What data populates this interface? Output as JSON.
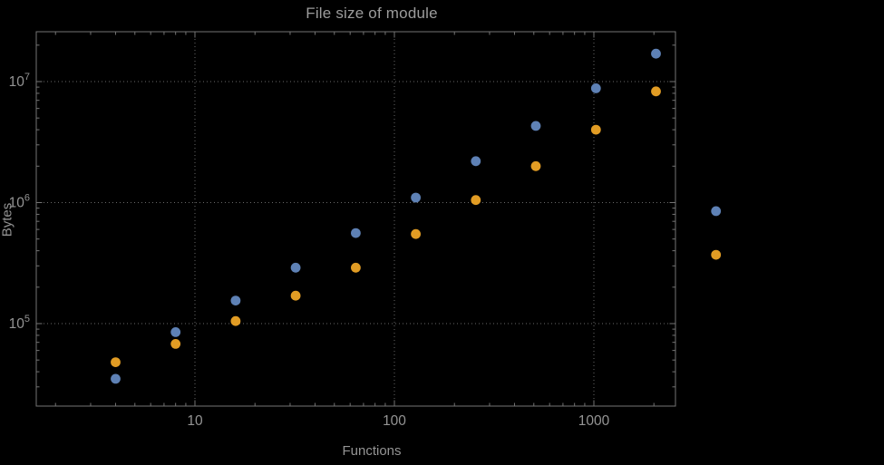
{
  "chart_data": {
    "type": "scatter",
    "title": "File size of module",
    "xlabel": "Functions",
    "ylabel": "Bytes",
    "x_scale": "log",
    "y_scale": "log",
    "grid": true,
    "legend": "none",
    "x_range": [
      1.6,
      2566
    ],
    "y_range": [
      20800,
      25800000
    ],
    "x_ticks": [
      {
        "value": 10,
        "label": "10"
      },
      {
        "value": 100,
        "label": "100"
      },
      {
        "value": 1000,
        "label": "1000"
      }
    ],
    "y_ticks": [
      {
        "value": 100000,
        "base": "10",
        "exp": "5"
      },
      {
        "value": 1000000,
        "base": "10",
        "exp": "6"
      },
      {
        "value": 10000000,
        "base": "10",
        "exp": "7"
      }
    ],
    "x": [
      4,
      8,
      16,
      32,
      64,
      128,
      256,
      512,
      1024,
      2048,
      4096
    ],
    "series": [
      {
        "name": "blue-series",
        "color": "#5E81B5",
        "values": [
          35000,
          85000,
          155000,
          290000,
          560000,
          1100000,
          2200000,
          4300000,
          8800000,
          17000000,
          850000
        ]
      },
      {
        "name": "orange-series",
        "color": "#E19C24",
        "values": [
          48000,
          68000,
          105000,
          170000,
          290000,
          550000,
          1050000,
          2000000,
          4000000,
          8300000,
          370000
        ]
      }
    ],
    "colors": {
      "background": "#000000",
      "frame": "#747474",
      "grid": "#686868",
      "tick_text": "#949494"
    }
  }
}
